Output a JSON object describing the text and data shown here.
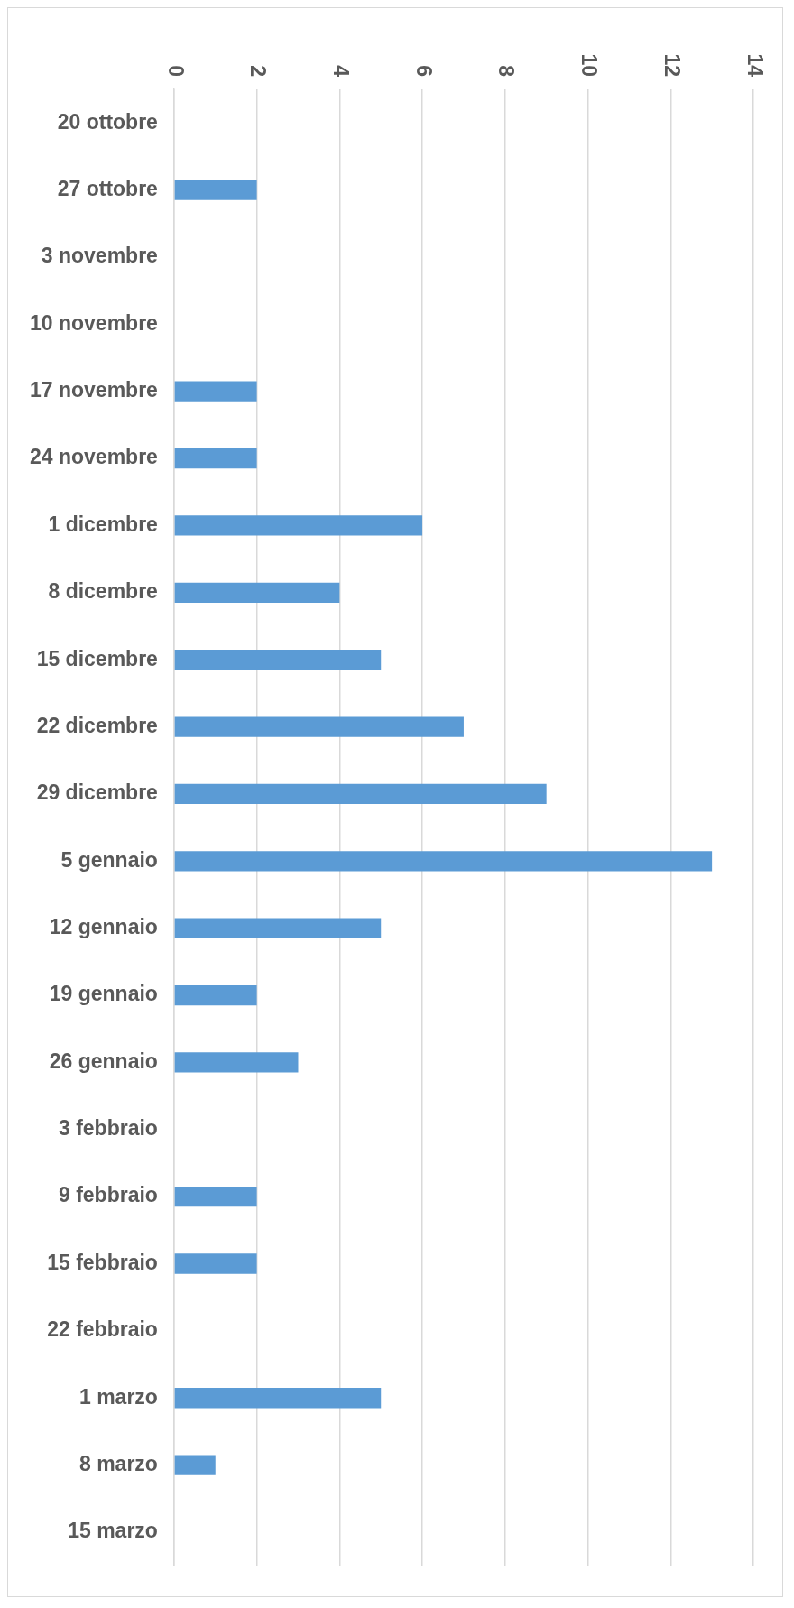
{
  "chart_data": {
    "type": "bar",
    "orientation": "horizontal",
    "categories": [
      "20 ottobre",
      "27 ottobre",
      "3 novembre",
      "10 novembre",
      "17 novembre",
      "24 novembre",
      "1 dicembre",
      "8 dicembre",
      "15 dicembre",
      "22 dicembre",
      "29 dicembre",
      "5 gennaio",
      "12 gennaio",
      "19 gennaio",
      "26 gennaio",
      "3 febbraio",
      "9 febbraio",
      "15 febbraio",
      "22 febbraio",
      "1 marzo",
      "8 marzo",
      "15 marzo"
    ],
    "values": [
      0,
      2,
      0,
      0,
      2,
      2,
      6,
      4,
      5,
      7,
      9,
      13,
      5,
      2,
      3,
      0,
      2,
      2,
      0,
      5,
      1,
      0
    ],
    "color": "#5b9bd5",
    "xlim": [
      0,
      14
    ],
    "xticks": [
      0,
      2,
      4,
      6,
      8,
      10,
      12,
      14
    ],
    "grid": "x",
    "legend": false
  }
}
